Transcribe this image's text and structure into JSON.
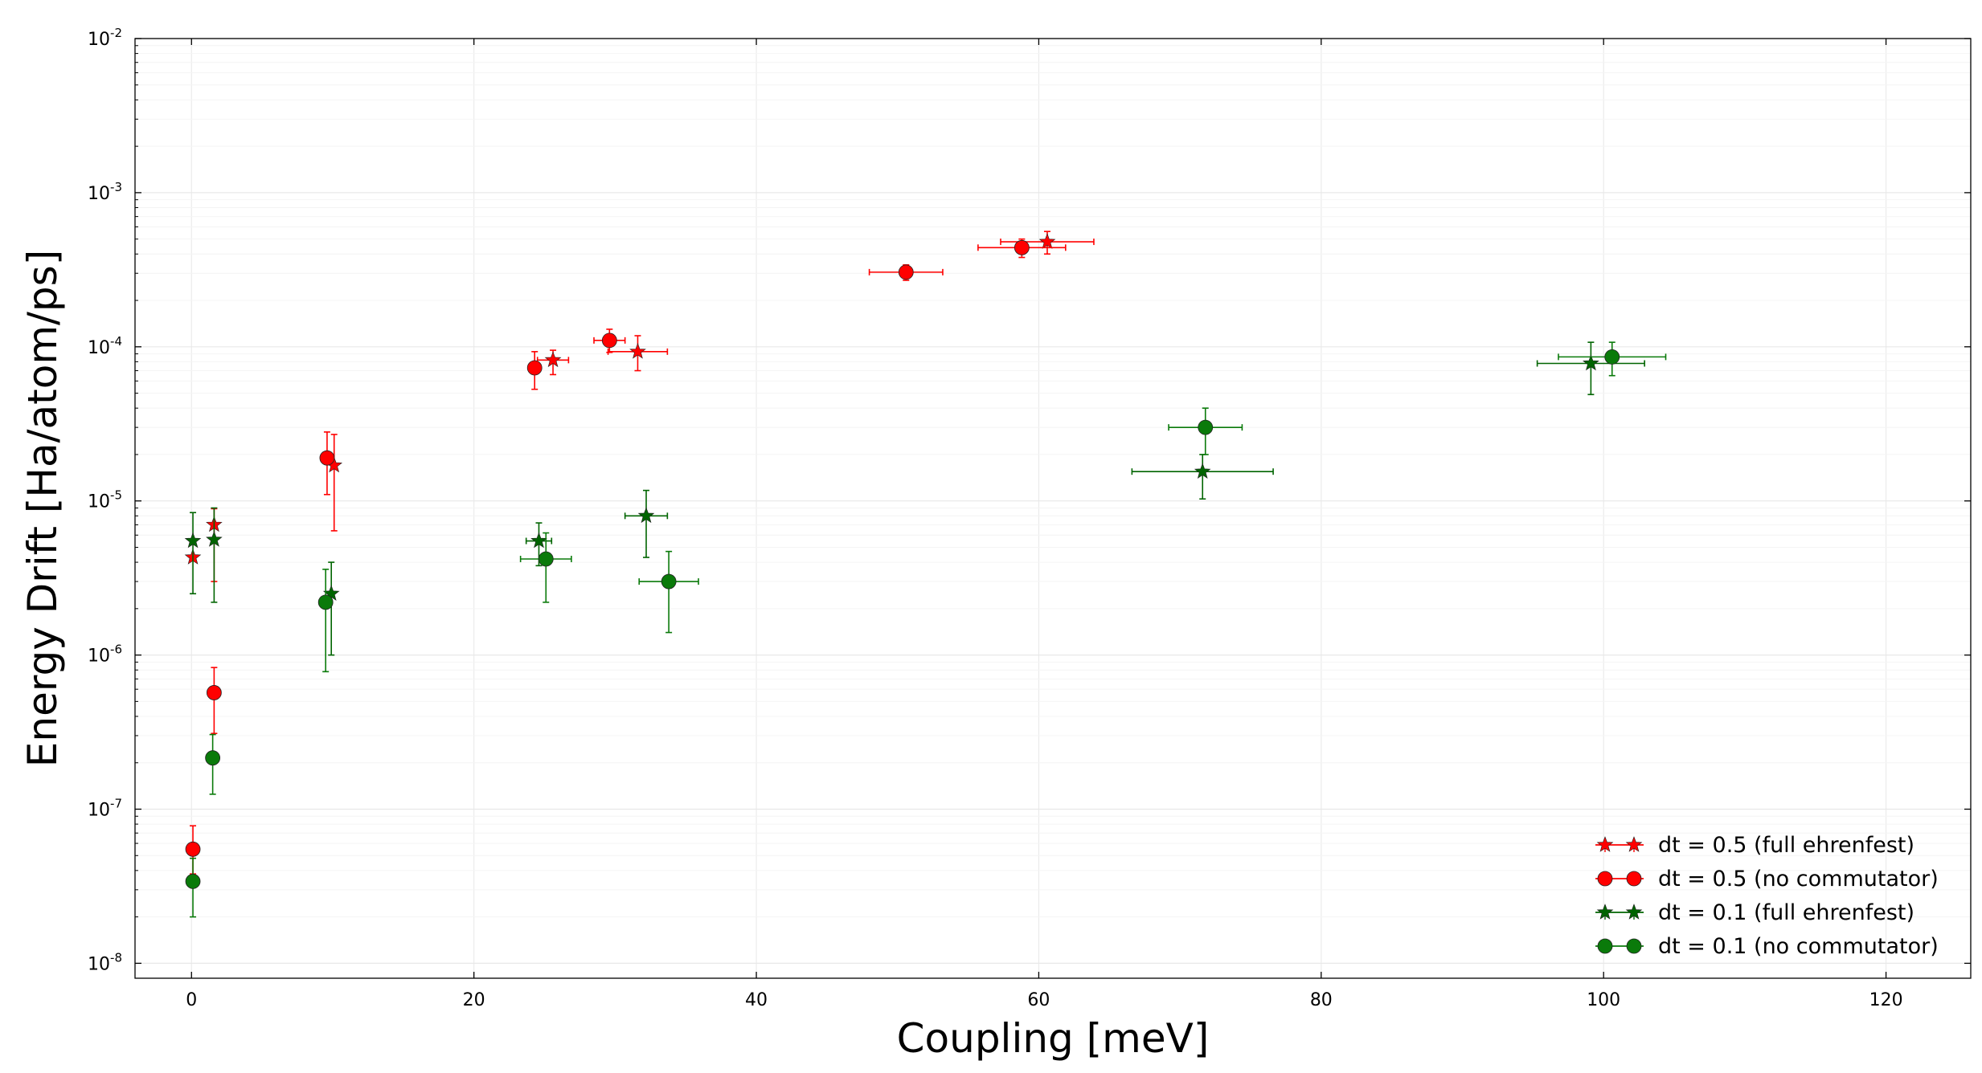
{
  "chart_data": {
    "type": "scatter",
    "title": "",
    "xlabel": "Coupling [meV]",
    "ylabel": "Energy Drift [Ha/atom/ps]",
    "xlim": [
      -4,
      126
    ],
    "ylim": [
      8e-09,
      0.01
    ],
    "yscale": "log",
    "grid": true,
    "legend_position": "bottom-right",
    "x_ticks": [
      0,
      20,
      40,
      60,
      80,
      100,
      120
    ],
    "x_tick_labels": [
      "0",
      "20",
      "40",
      "60",
      "80",
      "100",
      "120"
    ],
    "y_ticks": [
      1e-08,
      1e-07,
      1e-06,
      1e-05,
      0.0001,
      0.001,
      0.01
    ],
    "y_tick_labels": [
      {
        "base": "10",
        "exp": "-8"
      },
      {
        "base": "10",
        "exp": "-7"
      },
      {
        "base": "10",
        "exp": "-6"
      },
      {
        "base": "10",
        "exp": "-5"
      },
      {
        "base": "10",
        "exp": "-4"
      },
      {
        "base": "10",
        "exp": "-3"
      },
      {
        "base": "10",
        "exp": "-2"
      }
    ],
    "series": [
      {
        "name": "dt = 0.5 (full ehrenfest)",
        "color": "#ff0000",
        "marker": "star",
        "points": [
          {
            "x": 0.1,
            "y": 4.3e-06,
            "xerr": 0,
            "ylo": 4.3e-06,
            "yhi": 4.3e-06
          },
          {
            "x": 1.6,
            "y": 7e-06,
            "xerr": 0,
            "ylo": 3e-06,
            "yhi": 8.9e-06
          },
          {
            "x": 10.1,
            "y": 1.7e-05,
            "xerr": 0,
            "ylo": 6.4e-06,
            "yhi": 2.7e-05
          },
          {
            "x": 25.6,
            "y": 8.2e-05,
            "xerr": 1.1,
            "ylo": 6.6e-05,
            "yhi": 9.5e-05
          },
          {
            "x": 31.6,
            "y": 9.3e-05,
            "xerr": 2.1,
            "ylo": 7e-05,
            "yhi": 0.000118
          },
          {
            "x": 60.6,
            "y": 0.00048,
            "xerr": 3.3,
            "ylo": 0.0004,
            "yhi": 0.00056
          }
        ]
      },
      {
        "name": "dt = 0.5 (no commutator)",
        "color": "#ff0000",
        "marker": "circle",
        "points": [
          {
            "x": 0.1,
            "y": 5.5e-08,
            "xerr": 0,
            "ylo": 3.8e-08,
            "yhi": 7.8e-08
          },
          {
            "x": 1.6,
            "y": 5.7e-07,
            "xerr": 0,
            "ylo": 3.1e-07,
            "yhi": 8.3e-07
          },
          {
            "x": 9.6,
            "y": 1.9e-05,
            "xerr": 0,
            "ylo": 1.1e-05,
            "yhi": 2.8e-05
          },
          {
            "x": 24.3,
            "y": 7.3e-05,
            "xerr": 0,
            "ylo": 5.3e-05,
            "yhi": 9.3e-05
          },
          {
            "x": 29.6,
            "y": 0.00011,
            "xerr": 1.1,
            "ylo": 9.2e-05,
            "yhi": 0.00013
          },
          {
            "x": 50.6,
            "y": 0.000305,
            "xerr": 2.6,
            "ylo": 0.00027,
            "yhi": 0.00034
          },
          {
            "x": 58.8,
            "y": 0.00044,
            "xerr": 3.1,
            "ylo": 0.00038,
            "yhi": 0.0005
          }
        ]
      },
      {
        "name": "dt = 0.1 (full ehrenfest)",
        "color": "#006400",
        "marker": "star",
        "points": [
          {
            "x": 0.1,
            "y": 5.5e-06,
            "xerr": 0,
            "ylo": 2.5e-06,
            "yhi": 8.4e-06
          },
          {
            "x": 1.6,
            "y": 5.6e-06,
            "xerr": 0,
            "ylo": 2.2e-06,
            "yhi": 9e-06
          },
          {
            "x": 9.9,
            "y": 2.5e-06,
            "xerr": 0,
            "ylo": 1e-06,
            "yhi": 4e-06
          },
          {
            "x": 24.6,
            "y": 5.5e-06,
            "xerr": 0.9,
            "ylo": 3.8e-06,
            "yhi": 7.2e-06
          },
          {
            "x": 32.2,
            "y": 8e-06,
            "xerr": 1.5,
            "ylo": 4.3e-06,
            "yhi": 1.17e-05
          },
          {
            "x": 71.6,
            "y": 1.55e-05,
            "xerr": 5.0,
            "ylo": 1.03e-05,
            "yhi": 2e-05
          },
          {
            "x": 99.1,
            "y": 7.8e-05,
            "xerr": 3.8,
            "ylo": 4.9e-05,
            "yhi": 0.000107
          }
        ]
      },
      {
        "name": "dt = 0.1 (no commutator)",
        "color": "#0a7a0a",
        "marker": "circle",
        "points": [
          {
            "x": 0.1,
            "y": 3.4e-08,
            "xerr": 0,
            "ylo": 2e-08,
            "yhi": 4.8e-08
          },
          {
            "x": 1.5,
            "y": 2.15e-07,
            "xerr": 0,
            "ylo": 1.25e-07,
            "yhi": 3.05e-07
          },
          {
            "x": 9.5,
            "y": 2.2e-06,
            "xerr": 0,
            "ylo": 7.8e-07,
            "yhi": 3.6e-06
          },
          {
            "x": 25.1,
            "y": 4.2e-06,
            "xerr": 1.8,
            "ylo": 2.2e-06,
            "yhi": 6.2e-06
          },
          {
            "x": 33.8,
            "y": 3e-06,
            "xerr": 2.1,
            "ylo": 1.4e-06,
            "yhi": 4.7e-06
          },
          {
            "x": 71.8,
            "y": 3e-05,
            "xerr": 2.6,
            "ylo": 2e-05,
            "yhi": 4e-05
          },
          {
            "x": 100.6,
            "y": 8.6e-05,
            "xerr": 3.8,
            "ylo": 6.5e-05,
            "yhi": 0.000107
          }
        ]
      }
    ]
  }
}
